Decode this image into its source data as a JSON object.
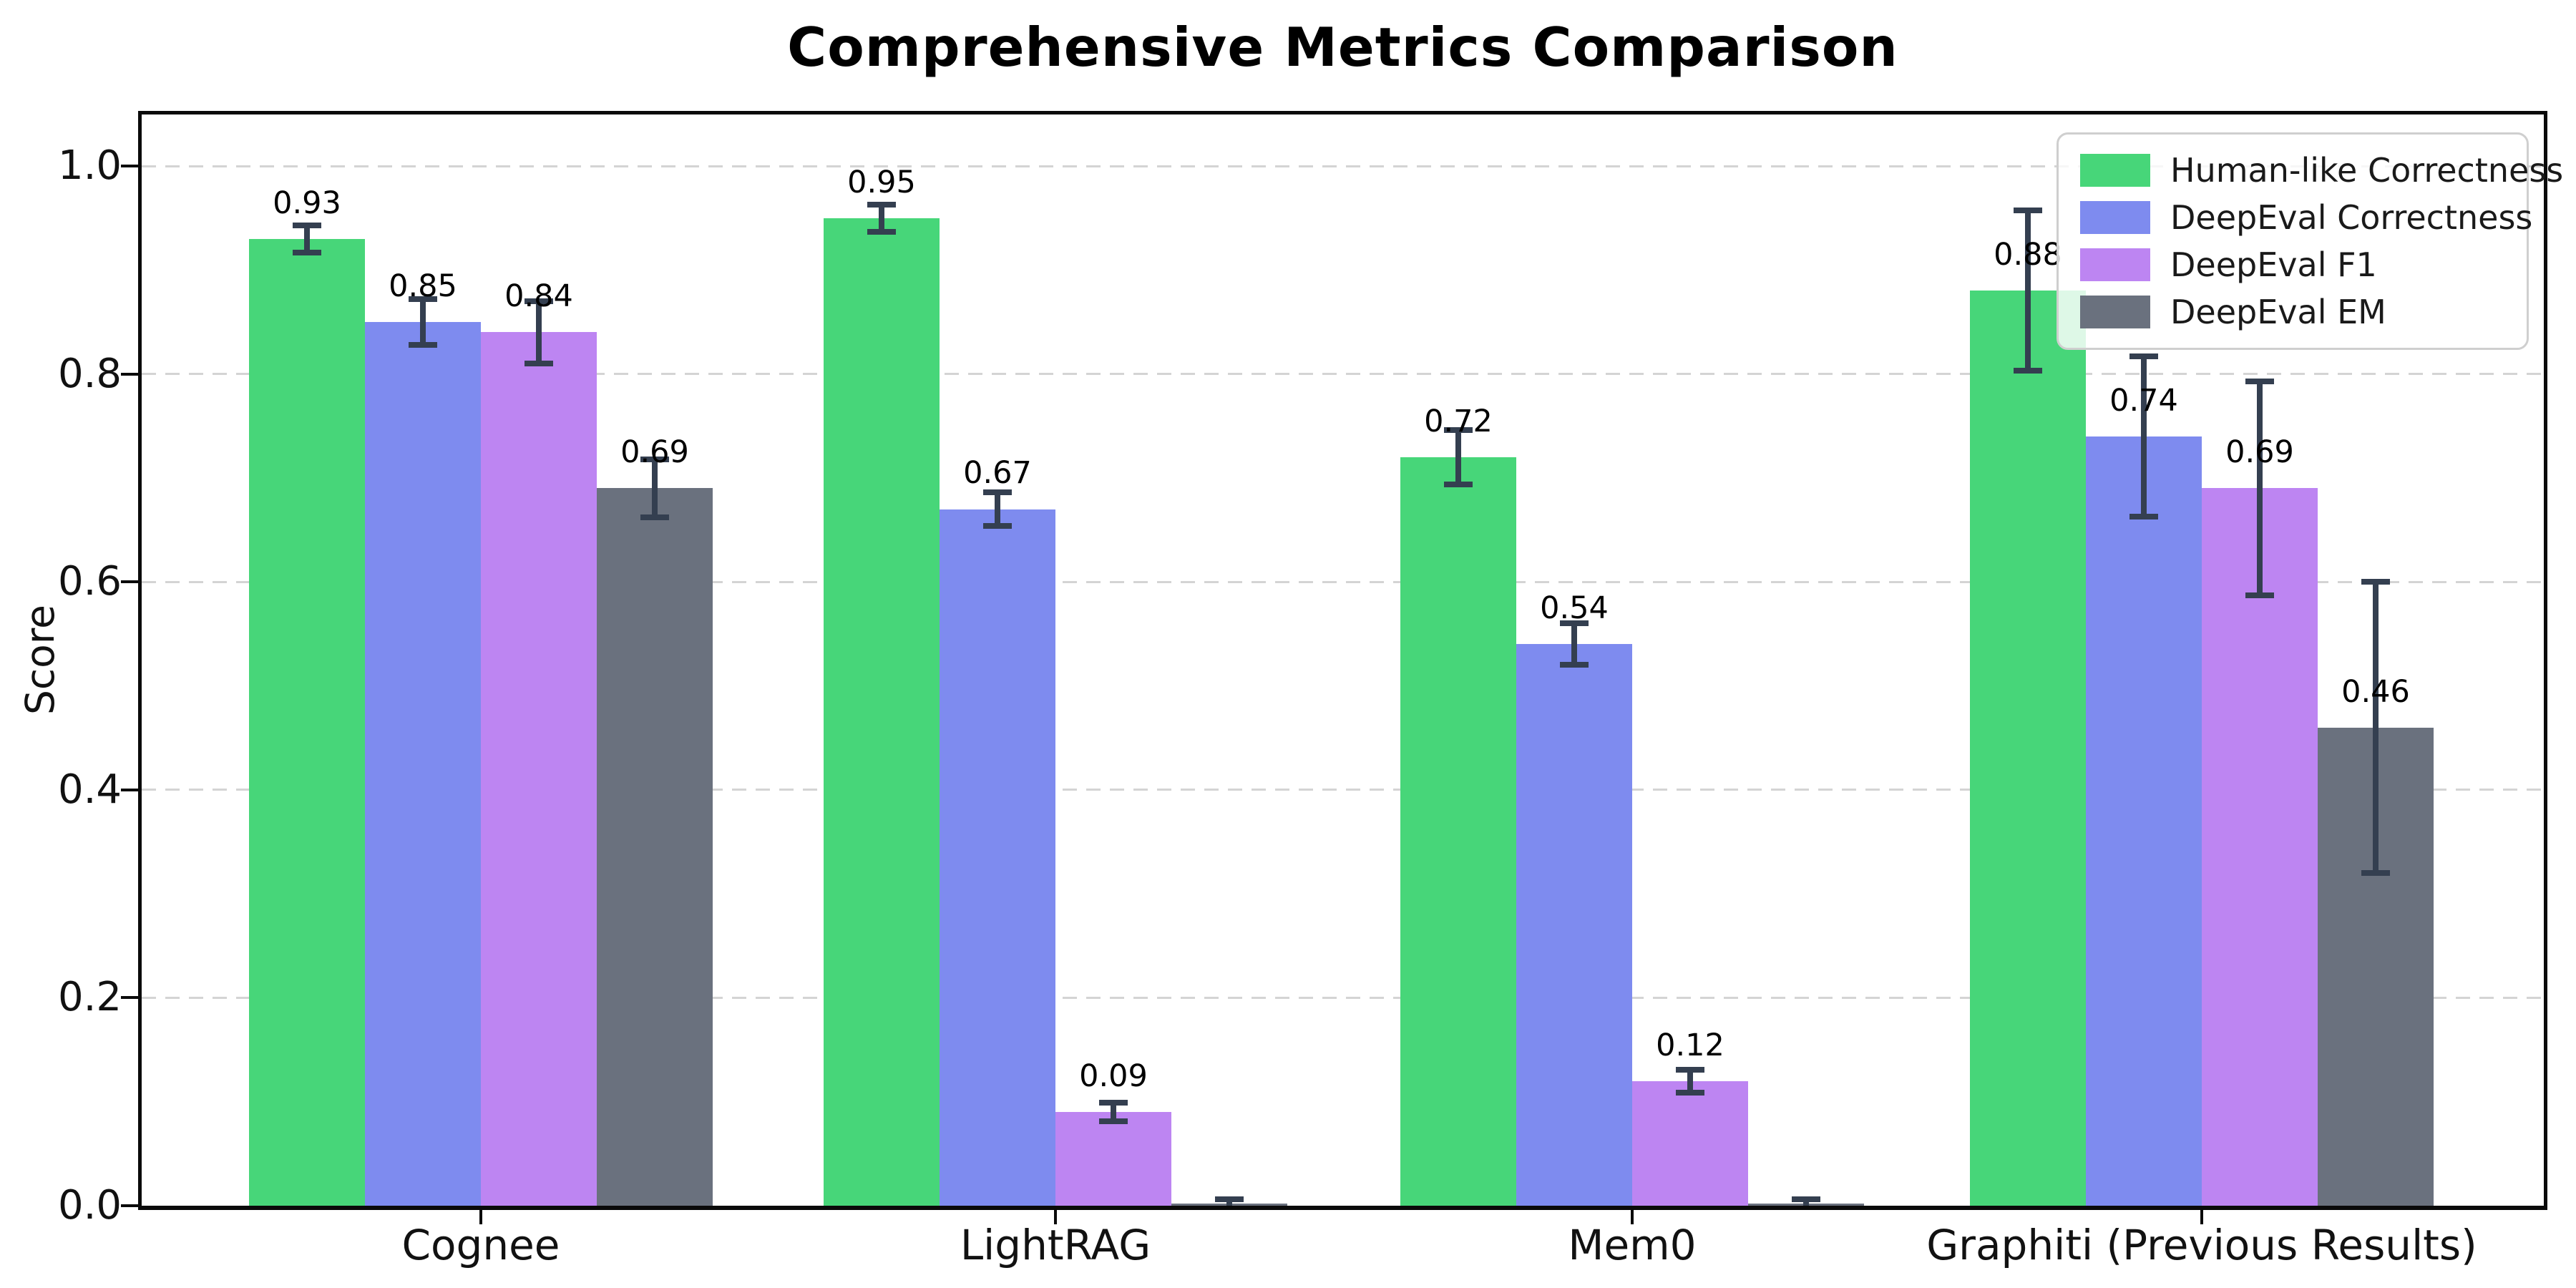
{
  "chart_data": {
    "type": "bar",
    "title": "Comprehensive Metrics Comparison",
    "xlabel": "",
    "ylabel": "Score",
    "ylim": [
      0,
      1.05
    ],
    "grid": "horizontal-dashed",
    "legend_position": "upper right",
    "categories": [
      "Cognee",
      "LightRAG",
      "Mem0",
      "Graphiti (Previous Results)"
    ],
    "ytick_labels": [
      "0.0",
      "0.2",
      "0.4",
      "0.6",
      "0.8",
      "1.0"
    ],
    "series": [
      {
        "name": "Human-like Correctness",
        "color": "#47D679",
        "values": [
          0.93,
          0.95,
          0.72,
          0.88
        ],
        "errors": [
          0.013,
          0.013,
          0.026,
          0.077
        ],
        "labels": [
          "0.93",
          "0.95",
          "0.72",
          "0.88"
        ]
      },
      {
        "name": "DeepEval Correctness",
        "color": "#7E8BEF",
        "values": [
          0.85,
          0.67,
          0.54,
          0.74
        ],
        "errors": [
          0.022,
          0.016,
          0.02,
          0.077
        ],
        "labels": [
          "0.85",
          "0.67",
          "0.54",
          "0.74"
        ]
      },
      {
        "name": "DeepEval F1",
        "color": "#BD85F2",
        "values": [
          0.84,
          0.09,
          0.12,
          0.69
        ],
        "errors": [
          0.03,
          0.009,
          0.011,
          0.103
        ],
        "labels": [
          "0.84",
          "0.09",
          "0.12",
          "0.69"
        ]
      },
      {
        "name": "DeepEval EM",
        "color": "#6A717E",
        "values": [
          0.69,
          0.002,
          0.002,
          0.46
        ],
        "errors": [
          0.028,
          0.004,
          0.004,
          0.14
        ],
        "labels": [
          "0.69",
          "",
          "",
          "0.46"
        ]
      }
    ]
  },
  "colors": {
    "axis": "#0a0a0a",
    "grid": "#d4d4d4",
    "error_bar": "#343F50",
    "legend_border": "#cfcfcf",
    "text": "#111111",
    "background": "#ffffff"
  }
}
